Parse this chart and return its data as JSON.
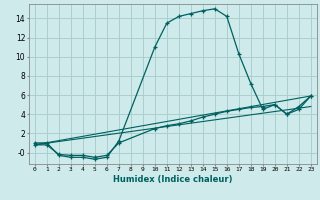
{
  "xlabel": "Humidex (Indice chaleur)",
  "bg_color": "#ceeaea",
  "grid_color": "#aacece",
  "line_color": "#006060",
  "xlim": [
    -0.5,
    23.5
  ],
  "ylim": [
    -1.2,
    15.5
  ],
  "xticks": [
    0,
    1,
    2,
    3,
    4,
    5,
    6,
    7,
    8,
    9,
    10,
    11,
    12,
    13,
    14,
    15,
    16,
    17,
    18,
    19,
    20,
    21,
    22,
    23
  ],
  "yticks": [
    0,
    2,
    4,
    6,
    8,
    10,
    12,
    14
  ],
  "ytick_labels": [
    "-0",
    "2",
    "4",
    "6",
    "8",
    "10",
    "12",
    "14"
  ],
  "series1_x": [
    0,
    1,
    2,
    3,
    4,
    5,
    6,
    7,
    10,
    11,
    12,
    13,
    14,
    15,
    16,
    17,
    18,
    19,
    20,
    21,
    22,
    23
  ],
  "series1_y": [
    1.0,
    1.0,
    -0.3,
    -0.5,
    -0.5,
    -0.7,
    -0.5,
    1.2,
    11.0,
    13.5,
    14.2,
    14.5,
    14.8,
    15.0,
    14.2,
    10.3,
    7.2,
    4.5,
    5.0,
    4.0,
    4.5,
    5.9
  ],
  "series2_x": [
    0,
    1,
    2,
    3,
    4,
    5,
    6,
    7,
    10,
    11,
    12,
    13,
    14,
    15,
    16,
    17,
    18,
    19,
    20,
    21,
    22,
    23
  ],
  "series2_y": [
    0.8,
    0.8,
    -0.2,
    -0.3,
    -0.3,
    -0.5,
    -0.3,
    1.0,
    2.5,
    2.8,
    3.0,
    3.3,
    3.7,
    4.0,
    4.3,
    4.5,
    4.7,
    4.8,
    5.0,
    4.0,
    4.8,
    5.9
  ],
  "series3_x": [
    0,
    23
  ],
  "series3_y": [
    0.8,
    5.9
  ],
  "series4_x": [
    0,
    23
  ],
  "series4_y": [
    0.8,
    4.8
  ]
}
